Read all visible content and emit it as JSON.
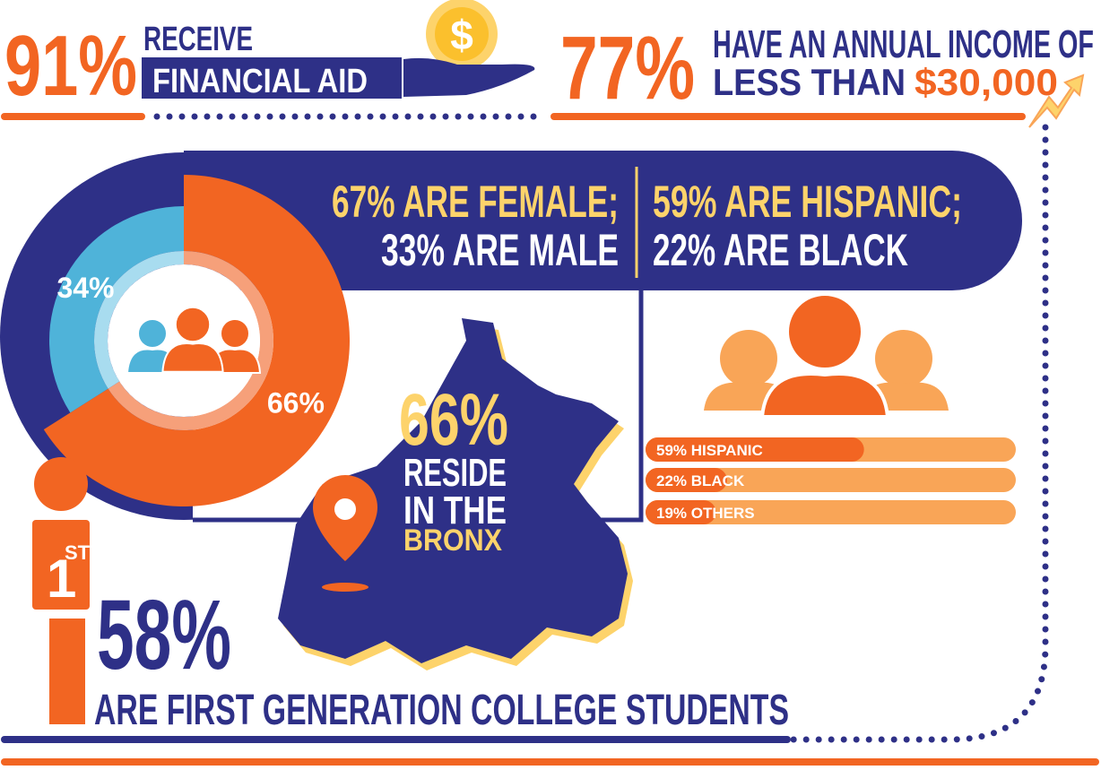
{
  "financial_aid": {
    "percent": "91%",
    "line1": "RECEIVE",
    "line2": "FINANCIAL AID",
    "coin_symbol": "$"
  },
  "income": {
    "percent": "77%",
    "line1": "HAVE AN ANNUAL INCOME OF",
    "line2a": "LESS THAN",
    "line2b": "$30,000"
  },
  "gender": {
    "line1": "67% ARE FEMALE;",
    "line2": "33% ARE MALE"
  },
  "ethnicity": {
    "line1": "59% ARE HISPANIC;",
    "line2": "22% ARE BLACK"
  },
  "donut": {
    "segments": [
      {
        "label": "66%",
        "value": 66,
        "color": "#f26522",
        "inner_color": "#f6a07a"
      },
      {
        "label": "34%",
        "value": 34,
        "color": "#4fb3d9",
        "inner_color": "#a8dcef"
      }
    ]
  },
  "bronx": {
    "percent": "66%",
    "line1": "RESIDE",
    "line2": "IN THE",
    "highlight": "BRONX"
  },
  "bars": [
    {
      "label": "59% HISPANIC",
      "value": 59
    },
    {
      "label": "22% BLACK",
      "value": 22
    },
    {
      "label": "19% OTHERS",
      "value": 19
    }
  ],
  "first_gen": {
    "badge": "1",
    "badge_sup": "ST",
    "percent": "58%",
    "text": "ARE FIRST GENERATION COLLEGE STUDENTS"
  }
}
